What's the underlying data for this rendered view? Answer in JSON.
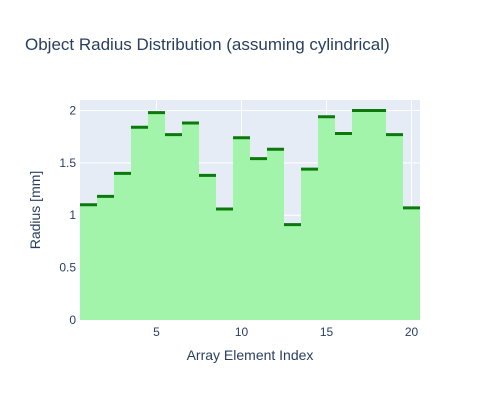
{
  "chart_data": {
    "type": "area",
    "title": "Object Radius Distribution (assuming cylindrical)",
    "xlabel": "Array Element Index",
    "ylabel": "Radius [mm]",
    "x": [
      1,
      2,
      3,
      4,
      5,
      6,
      7,
      8,
      9,
      10,
      11,
      12,
      13,
      14,
      15,
      16,
      17,
      18,
      19,
      20
    ],
    "series": [
      {
        "values": [
          1.1,
          1.18,
          1.4,
          1.84,
          1.98,
          1.77,
          1.88,
          1.38,
          1.06,
          1.74,
          1.54,
          1.63,
          0.91,
          1.44,
          1.94,
          1.78,
          2.0,
          2.0,
          1.77,
          1.07
        ]
      }
    ],
    "xlim": [
      0.5,
      20.5
    ],
    "ylim": [
      0,
      2.1
    ],
    "x_ticks": [
      5,
      10,
      15,
      20
    ],
    "y_ticks": [
      0,
      0.5,
      1,
      1.5,
      2
    ],
    "x_tick_labels": [
      "5",
      "10",
      "15",
      "20"
    ],
    "y_tick_labels": [
      "0",
      "0.5",
      "1",
      "1.5",
      "2"
    ],
    "grid": true,
    "legend": "none",
    "colors": {
      "fill": "#a3f4ab",
      "step_line": "#0b7a0b",
      "plot_background": "#e5ecf6",
      "grid": "#ffffff",
      "text": "#2a3f5f"
    }
  }
}
